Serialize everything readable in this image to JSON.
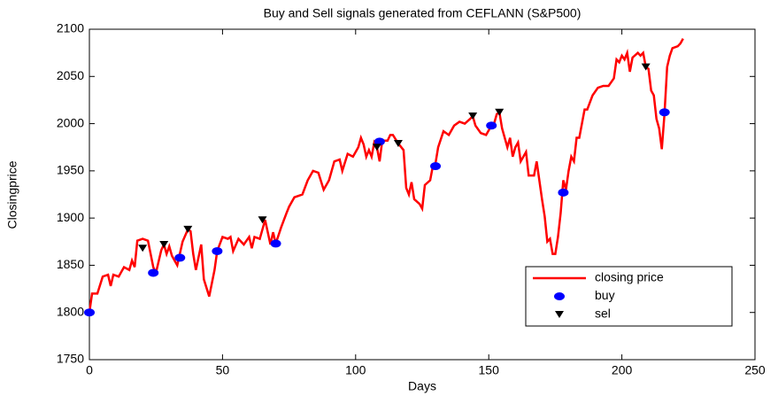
{
  "chart_data": {
    "type": "line",
    "title": "Buy and Sell signals generated from CEFLANN (S&P500)",
    "x_label": "Days",
    "y_label": "Closingprice",
    "xlim": [
      0,
      250
    ],
    "xticks": [
      0,
      50,
      100,
      150,
      200,
      250
    ],
    "ylim": [
      1750,
      2100
    ],
    "yticks": [
      1750,
      1800,
      1850,
      1900,
      1950,
      2000,
      2050,
      2100
    ],
    "grid": false,
    "legend": "lower right",
    "series": [
      {
        "name": "closing price",
        "color": "#ff0000",
        "marker": "none",
        "x": [
          0,
          1,
          3,
          5,
          7,
          8,
          9,
          11,
          13,
          15,
          16,
          17,
          18,
          20,
          22,
          23,
          24,
          25,
          27,
          28,
          29,
          30,
          31,
          33,
          35,
          37,
          38,
          39,
          40,
          42,
          43,
          45,
          47,
          48,
          50,
          52,
          53,
          54,
          56,
          58,
          60,
          61,
          62,
          64,
          65,
          66,
          68,
          69,
          70,
          72,
          74,
          75,
          77,
          80,
          82,
          84,
          86,
          88,
          90,
          92,
          94,
          95,
          97,
          99,
          101,
          102,
          103,
          104,
          105,
          106,
          107,
          108,
          109,
          110,
          112,
          113,
          114,
          116,
          118,
          119,
          120,
          121,
          122,
          124,
          125,
          126,
          128,
          129,
          130,
          131,
          133,
          135,
          137,
          139,
          141,
          143,
          144,
          145,
          147,
          149,
          151,
          152,
          153,
          154,
          155,
          157,
          158,
          159,
          160,
          161,
          162,
          164,
          165,
          167,
          168,
          170,
          171,
          172,
          173,
          174,
          175,
          176,
          177,
          178,
          179,
          180,
          181,
          182,
          183,
          184,
          186,
          187,
          189,
          191,
          193,
          195,
          197,
          198,
          199,
          200,
          201,
          202,
          203,
          204,
          206,
          207,
          208,
          209,
          210,
          211,
          212,
          213,
          214,
          215,
          216,
          217,
          218,
          219,
          221,
          222,
          223
        ],
        "values": [
          1800,
          1820,
          1820,
          1838,
          1840,
          1828,
          1840,
          1838,
          1848,
          1845,
          1855,
          1848,
          1876,
          1878,
          1876,
          1862,
          1848,
          1842,
          1866,
          1872,
          1862,
          1870,
          1860,
          1850,
          1875,
          1888,
          1886,
          1862,
          1845,
          1872,
          1835,
          1817,
          1845,
          1865,
          1880,
          1878,
          1880,
          1865,
          1878,
          1872,
          1880,
          1868,
          1880,
          1878,
          1888,
          1898,
          1872,
          1885,
          1873,
          1890,
          1905,
          1912,
          1922,
          1925,
          1940,
          1950,
          1948,
          1930,
          1940,
          1960,
          1962,
          1950,
          1968,
          1965,
          1975,
          1985,
          1978,
          1965,
          1972,
          1965,
          1980,
          1975,
          1960,
          1982,
          1982,
          1988,
          1988,
          1979,
          1972,
          1932,
          1925,
          1938,
          1920,
          1915,
          1910,
          1935,
          1940,
          1955,
          1958,
          1975,
          1992,
          1988,
          1998,
          2002,
          2000,
          2005,
          2008,
          1998,
          1990,
          1988,
          1998,
          2000,
          2010,
          2012,
          1995,
          1975,
          1985,
          1965,
          1975,
          1980,
          1960,
          1970,
          1945,
          1945,
          1960,
          1920,
          1902,
          1875,
          1878,
          1862,
          1862,
          1880,
          1905,
          1940,
          1930,
          1950,
          1965,
          1960,
          1985,
          1985,
          2015,
          2015,
          2030,
          2038,
          2040,
          2040,
          2048,
          2068,
          2065,
          2072,
          2068,
          2075,
          2055,
          2070,
          2075,
          2072,
          2075,
          2060,
          2058,
          2035,
          2030,
          2005,
          1995,
          1973,
          2010,
          2060,
          2072,
          2080,
          2082,
          2085,
          2090
        ]
      },
      {
        "name": "buy",
        "color": "#0000ff",
        "marker": "o",
        "x": [
          0,
          24,
          34,
          48,
          70,
          109,
          130,
          151,
          178,
          216
        ],
        "values": [
          1800,
          1842,
          1858,
          1865,
          1873,
          1981,
          1955,
          1998,
          1927,
          2012
        ]
      },
      {
        "name": "sel",
        "color": "#000000",
        "marker": "v",
        "x": [
          20,
          28,
          37,
          65,
          108,
          116,
          144,
          154,
          209
        ],
        "values": [
          1868,
          1872,
          1888,
          1898,
          1975,
          1979,
          2008,
          2012,
          2060
        ]
      }
    ]
  }
}
